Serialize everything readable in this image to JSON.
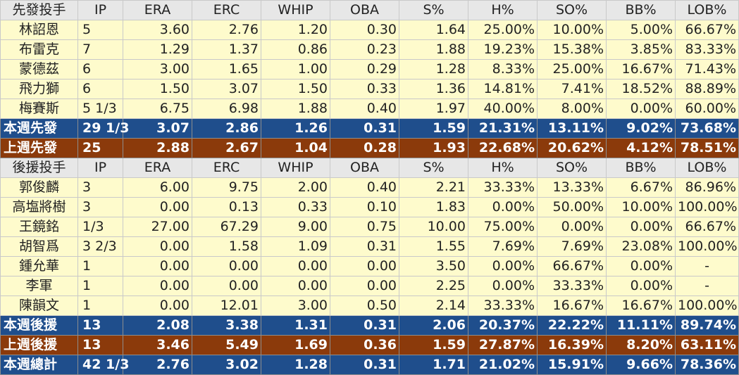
{
  "headers": [
    "IP",
    "ERA",
    "ERC",
    "WHIP",
    "OBA",
    "S%",
    "H%",
    "SO%",
    "BB%",
    "LOB%"
  ],
  "starters": {
    "title": "先發投手",
    "rows": [
      {
        "name": "林詔恩",
        "values": [
          "5",
          "3.60",
          "2.76",
          "1.20",
          "0.30",
          "1.64",
          "25.00%",
          "10.00%",
          "5.00%",
          "66.67%"
        ]
      },
      {
        "name": "布雷克",
        "values": [
          "7",
          "1.29",
          "1.37",
          "0.86",
          "0.23",
          "1.88",
          "19.23%",
          "15.38%",
          "3.85%",
          "83.33%"
        ]
      },
      {
        "name": "蒙德茲",
        "values": [
          "6",
          "3.00",
          "1.65",
          "1.00",
          "0.29",
          "1.28",
          "8.33%",
          "25.00%",
          "16.67%",
          "71.43%"
        ]
      },
      {
        "name": "飛力獅",
        "values": [
          "6",
          "1.50",
          "3.07",
          "1.50",
          "0.33",
          "1.36",
          "14.81%",
          "7.41%",
          "18.52%",
          "88.89%"
        ]
      },
      {
        "name": "梅賽斯",
        "values": [
          "5 1/3",
          "6.75",
          "6.98",
          "1.88",
          "0.40",
          "1.97",
          "40.00%",
          "8.00%",
          "0.00%",
          "60.00%"
        ]
      }
    ],
    "this_week": {
      "name": "本週先發",
      "values": [
        "29 1/3",
        "3.07",
        "2.86",
        "1.26",
        "0.31",
        "1.59",
        "21.31%",
        "13.11%",
        "9.02%",
        "73.68%"
      ]
    },
    "last_week": {
      "name": "上週先發",
      "values": [
        "25",
        "2.88",
        "2.67",
        "1.04",
        "0.28",
        "1.93",
        "22.68%",
        "20.62%",
        "4.12%",
        "78.51%"
      ]
    }
  },
  "relievers": {
    "title": "後援投手",
    "rows": [
      {
        "name": "郭俊麟",
        "values": [
          "3",
          "6.00",
          "9.75",
          "2.00",
          "0.40",
          "2.21",
          "33.33%",
          "13.33%",
          "6.67%",
          "86.96%"
        ]
      },
      {
        "name": "高塩將樹",
        "values": [
          "3",
          "0.00",
          "0.13",
          "0.33",
          "0.10",
          "1.83",
          "0.00%",
          "50.00%",
          "10.00%",
          "100.00%"
        ]
      },
      {
        "name": "王鏡銘",
        "values": [
          "1/3",
          "27.00",
          "67.29",
          "9.00",
          "0.75",
          "10.00",
          "75.00%",
          "0.00%",
          "0.00%",
          "66.67%"
        ]
      },
      {
        "name": "胡智爲",
        "values": [
          "3 2/3",
          "0.00",
          "1.58",
          "1.09",
          "0.31",
          "1.55",
          "7.69%",
          "7.69%",
          "23.08%",
          "100.00%"
        ]
      },
      {
        "name": "鍾允華",
        "values": [
          "1",
          "0.00",
          "0.00",
          "0.00",
          "0.00",
          "3.50",
          "0.00%",
          "66.67%",
          "0.00%",
          "-"
        ]
      },
      {
        "name": "李軍",
        "values": [
          "1",
          "0.00",
          "0.00",
          "0.00",
          "0.00",
          "2.25",
          "0.00%",
          "33.33%",
          "0.00%",
          "-"
        ]
      },
      {
        "name": "陳韻文",
        "values": [
          "1",
          "0.00",
          "12.01",
          "3.00",
          "0.50",
          "2.14",
          "33.33%",
          "16.67%",
          "16.67%",
          "100.00%"
        ]
      }
    ],
    "this_week": {
      "name": "本週後援",
      "values": [
        "13",
        "2.08",
        "3.38",
        "1.31",
        "0.31",
        "2.06",
        "20.37%",
        "22.22%",
        "11.11%",
        "89.74%"
      ]
    },
    "last_week": {
      "name": "上週後援",
      "values": [
        "13",
        "3.46",
        "5.49",
        "1.69",
        "0.36",
        "1.59",
        "27.87%",
        "16.39%",
        "8.20%",
        "63.11%"
      ]
    }
  },
  "weekly_total": {
    "name": "本週總計",
    "values": [
      "42 1/3",
      "2.76",
      "3.02",
      "1.28",
      "0.31",
      "1.71",
      "21.02%",
      "15.91%",
      "9.66%",
      "78.36%"
    ]
  }
}
